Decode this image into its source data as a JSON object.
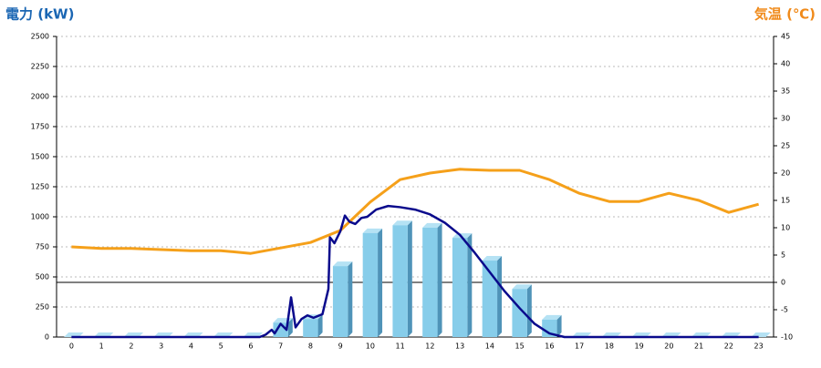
{
  "chart_data": {
    "type": "combo",
    "y_label": "電力 (kW)",
    "y2_label": "気温 (℃)",
    "categories": [
      "0",
      "1",
      "2",
      "3",
      "4",
      "5",
      "6",
      "7",
      "8",
      "9",
      "10",
      "11",
      "12",
      "13",
      "14",
      "15",
      "16",
      "17",
      "18",
      "19",
      "20",
      "21",
      "22",
      "23"
    ],
    "ylim": [
      0,
      2500
    ],
    "yticks": [
      0,
      250,
      500,
      750,
      1000,
      1250,
      1500,
      1750,
      2000,
      2250,
      2500
    ],
    "y2lim": [
      -10,
      45
    ],
    "y2ticks": [
      -10,
      -5,
      0,
      5,
      10,
      15,
      20,
      25,
      30,
      35,
      40,
      45
    ],
    "grid": true,
    "reference_line": {
      "axis": "y2",
      "value": 0
    },
    "series": [
      {
        "type": "bar",
        "color": "#87cdea",
        "values": [
          0,
          0,
          0,
          0,
          0,
          0,
          0,
          120,
          150,
          590,
          865,
          930,
          910,
          825,
          636,
          400,
          145,
          0,
          0,
          0,
          0,
          0,
          0,
          0
        ]
      },
      {
        "type": "line",
        "color": "#0a0a8c",
        "x": [
          0,
          6.3,
          6.5,
          6.7,
          6.8,
          7.0,
          7.2,
          7.35,
          7.5,
          7.7,
          7.9,
          8.1,
          8.4,
          8.6,
          8.65,
          8.8,
          9.0,
          9.15,
          9.3,
          9.5,
          9.7,
          9.9,
          10.2,
          10.6,
          11.0,
          11.5,
          12.0,
          12.5,
          13.0,
          13.5,
          14.0,
          14.5,
          15.0,
          15.5,
          16.0,
          16.5,
          23
        ],
        "values": [
          0,
          0,
          20,
          60,
          30,
          110,
          60,
          330,
          80,
          150,
          180,
          160,
          190,
          400,
          830,
          780,
          880,
          1010,
          960,
          940,
          990,
          1000,
          1060,
          1090,
          1080,
          1060,
          1020,
          950,
          850,
          700,
          540,
          380,
          240,
          110,
          30,
          0,
          0
        ]
      },
      {
        "type": "line",
        "axis": "y2",
        "color": "#f5a01a",
        "values": [
          6.5,
          6.2,
          6.2,
          6,
          5.8,
          5.8,
          5.3,
          6.3,
          7.3,
          9.5,
          14.7,
          18.8,
          20,
          20.7,
          20.5,
          20.5,
          18.8,
          16.3,
          14.8,
          14.8,
          16.3,
          15,
          12.8,
          14.3
        ]
      }
    ]
  }
}
